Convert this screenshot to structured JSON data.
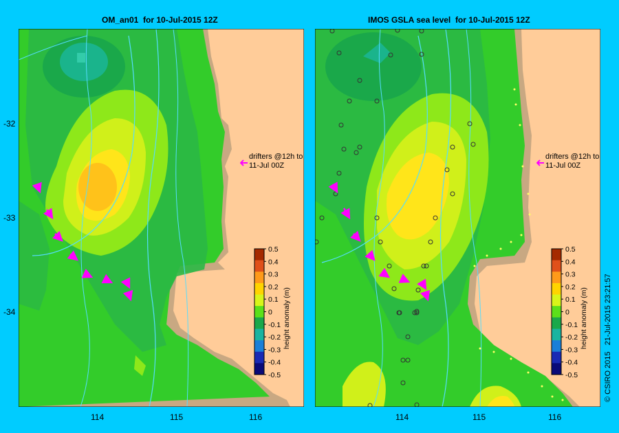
{
  "left_panel": {
    "title": "OM_an01  for 10-Jul-2015 12Z",
    "note_line1": "drifters @12h to",
    "note_line2": "11-Jul 00Z",
    "colorbar_label": "height anomaly (m)"
  },
  "right_panel": {
    "title": "IMOS GSLA sea level  for 10-Jul-2015 12Z",
    "note_line1": "drifters @12h to",
    "note_line2": "11-Jul 00Z",
    "colorbar_label": "height anomaly (m)"
  },
  "lat_ticks": [
    "-32",
    "-33",
    "-34"
  ],
  "lon_ticks": [
    "114",
    "115",
    "116"
  ],
  "colorbar_ticks": [
    "0.5",
    "0.4",
    "0.3",
    "0.2",
    "0.1",
    "0",
    "-0.1",
    "-0.2",
    "-0.3",
    "-0.4",
    "-0.5"
  ],
  "colorbar_colors": [
    "#a52a00",
    "#e0501a",
    "#ff9a1a",
    "#ffd400",
    "#d8f51a",
    "#5be01a",
    "#1aa84a",
    "#1ab4a0",
    "#1a7fd8",
    "#1a2ab4",
    "#0a0a78"
  ],
  "credit": "© CSIRO 2015   21-Jul-2015 23:21:57",
  "colors": {
    "background": "#00ccff",
    "land": "#ffcc99",
    "shelf": "#c8a882",
    "drifter": "#ff00ff",
    "isobath": "#55ddff"
  }
}
